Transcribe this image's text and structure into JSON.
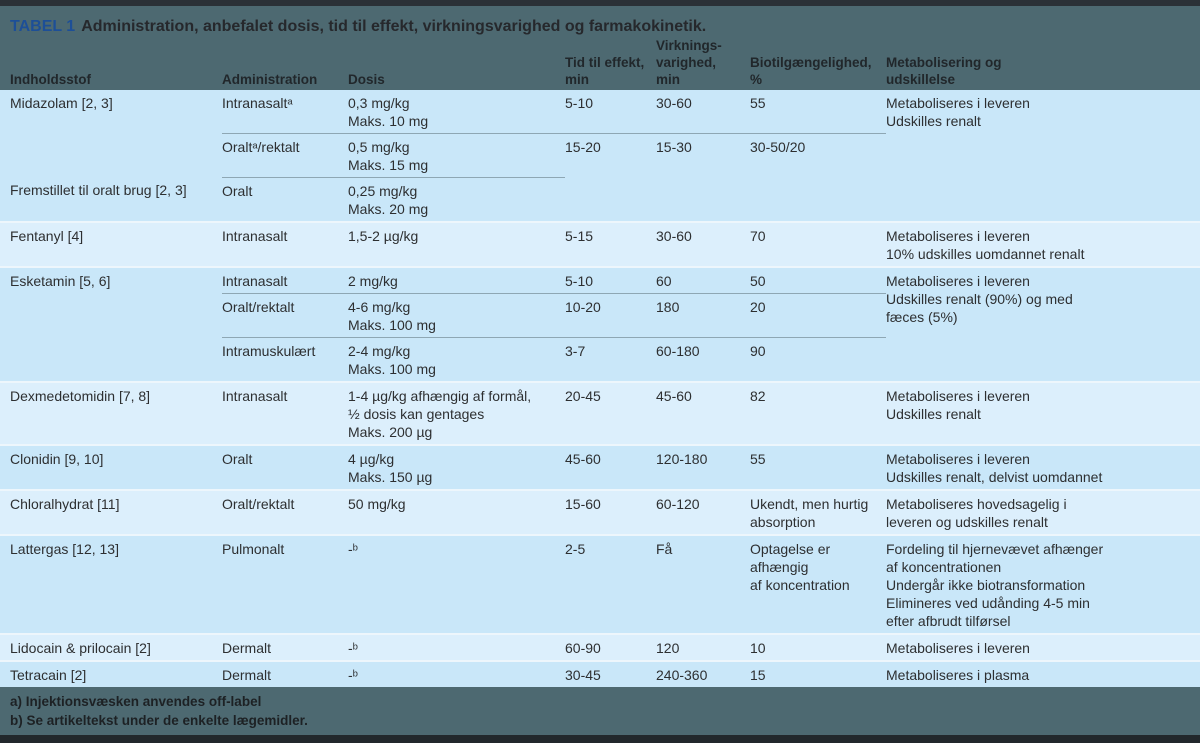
{
  "title": {
    "badge": "TABEL 1",
    "text": "Administration, anbefalet dosis, tid til effekt, virkningsvarighed og farmakokinetik."
  },
  "columns": [
    "Indholdsstof",
    "Administration",
    "Dosis",
    "Tid til effekt,\nmin",
    "Virknings-\nvarighed, min",
    "Biotilgængelighed, %",
    "Metabolisering og\nudskillelse"
  ],
  "blocks": [
    {
      "tint": "dark",
      "metabolism": "Metaboliseres i leveren\nUdskilles renalt",
      "subrows": [
        {
          "substance": "Midazolam [2, 3]",
          "administration": "Intranasaltᵃ",
          "dose": "0,3 mg/kg\nMaks. 10 mg",
          "onset": "5-10",
          "duration": "30-60",
          "bioavailability": "55",
          "sep": ""
        },
        {
          "substance": "",
          "administration": "Oraltᵃ/rektalt",
          "dose": "0,5 mg/kg\nMaks. 15 mg",
          "onset": "15-20",
          "duration": "15-30",
          "bioavailability": "30-50/20",
          "sep": "wide"
        },
        {
          "substance": "Fremstillet til oralt brug [2, 3]",
          "administration": "Oralt",
          "dose": "0,25 mg/kg\nMaks. 20 mg",
          "onset": "",
          "duration": "",
          "bioavailability": "",
          "sep": "narrow"
        }
      ]
    },
    {
      "tint": "light",
      "metabolism": "Metaboliseres i leveren\n10% udskilles uomdannet renalt",
      "subrows": [
        {
          "substance": "Fentanyl [4]",
          "administration": "Intranasalt",
          "dose": "1,5-2 µg/kg",
          "onset": "5-15",
          "duration": "30-60",
          "bioavailability": "70",
          "sep": ""
        }
      ]
    },
    {
      "tint": "dark",
      "metabolism": "Metaboliseres i leveren\nUdskilles renalt (90%) og med\nfæces (5%)",
      "subrows": [
        {
          "substance": "Esketamin [5, 6]",
          "administration": "Intranasalt",
          "dose": "2 mg/kg",
          "onset": "5-10",
          "duration": "60",
          "bioavailability": "50",
          "sep": ""
        },
        {
          "substance": "",
          "administration": "Oralt/rektalt",
          "dose": "4-6 mg/kg\nMaks. 100 mg",
          "onset": "10-20",
          "duration": "180",
          "bioavailability": "20",
          "sep": "wide"
        },
        {
          "substance": "",
          "administration": "Intramuskulært",
          "dose": "2-4 mg/kg\nMaks. 100 mg",
          "onset": "3-7",
          "duration": "60-180",
          "bioavailability": "90",
          "sep": "wide"
        }
      ]
    },
    {
      "tint": "light",
      "metabolism": "Metaboliseres i leveren\nUdskilles renalt",
      "subrows": [
        {
          "substance": "Dexmedetomidin [7, 8]",
          "administration": "Intranasalt",
          "dose": "1-4 µg/kg afhængig af formål,\n½ dosis kan gentages\nMaks. 200 µg",
          "onset": "20-45",
          "duration": "45-60",
          "bioavailability": "82",
          "sep": ""
        }
      ]
    },
    {
      "tint": "dark",
      "metabolism": "Metaboliseres i leveren\nUdskilles renalt, delvist uomdannet",
      "subrows": [
        {
          "substance": "Clonidin [9, 10]",
          "administration": "Oralt",
          "dose": "4 µg/kg\nMaks. 150 µg",
          "onset": "45-60",
          "duration": "120-180",
          "bioavailability": "55",
          "sep": ""
        }
      ]
    },
    {
      "tint": "light",
      "metabolism": "Metaboliseres hovedsagelig i\nleveren og udskilles renalt",
      "subrows": [
        {
          "substance": "Chloralhydrat [11]",
          "administration": "Oralt/rektalt",
          "dose": "50 mg/kg",
          "onset": "15-60",
          "duration": "60-120",
          "bioavailability": "Ukendt, men hurtig\nabsorption",
          "sep": ""
        }
      ]
    },
    {
      "tint": "dark",
      "metabolism": "Fordeling til hjernevævet afhænger\naf koncentrationen\nUndergår ikke biotransformation\nElimineres ved udånding 4-5 min\nefter afbrudt tilførsel",
      "subrows": [
        {
          "substance": "Lattergas [12, 13]",
          "administration": "Pulmonalt",
          "dose": "-ᵇ",
          "onset": "2-5",
          "duration": "Få",
          "bioavailability": "Optagelse er afhængig\naf koncentration",
          "sep": ""
        }
      ]
    },
    {
      "tint": "light",
      "metabolism": "Metaboliseres i leveren",
      "subrows": [
        {
          "substance": "Lidocain & prilocain [2]",
          "administration": "Dermalt",
          "dose": "-ᵇ",
          "onset": "60-90",
          "duration": "120",
          "bioavailability": "10",
          "sep": ""
        }
      ]
    },
    {
      "tint": "dark",
      "metabolism": "Metaboliseres i plasma",
      "subrows": [
        {
          "substance": "Tetracain [2]",
          "administration": "Dermalt",
          "dose": "-ᵇ",
          "onset": "30-45",
          "duration": "240-360",
          "bioavailability": "15",
          "sep": ""
        }
      ]
    }
  ],
  "footnotes": [
    "a) Injektionsvæsken anvendes off-label",
    "b) Se artikeltekst under de enkelte lægemidler."
  ],
  "colors": {
    "band": "#4d6971",
    "row_dark": "#c9e7f9",
    "row_light": "#dceffc",
    "edge_bar": "#2b3137",
    "title_accent": "#1d4f97",
    "separator": "#8ea7b4"
  }
}
